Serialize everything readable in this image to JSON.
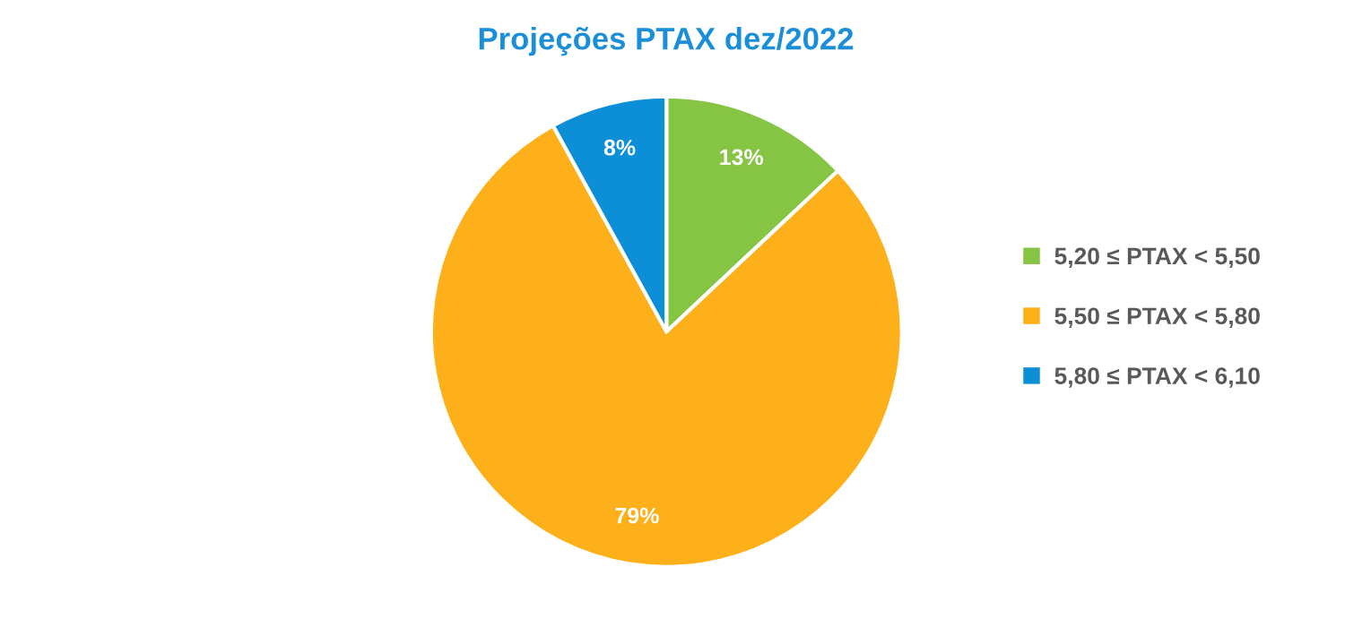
{
  "chart_data": {
    "type": "pie",
    "title": "Projeções PTAX dez/2022",
    "categories": [
      "5,20 ≤ PTAX < 5,50",
      "5,50 ≤ PTAX < 5,80",
      "5,80 ≤ PTAX < 6,10"
    ],
    "values": [
      13,
      79,
      8
    ],
    "colors": [
      "#86c443",
      "#fdb01a",
      "#0c8fd6"
    ],
    "value_labels": [
      "13%",
      "79%",
      "8%"
    ],
    "legend": "right"
  }
}
